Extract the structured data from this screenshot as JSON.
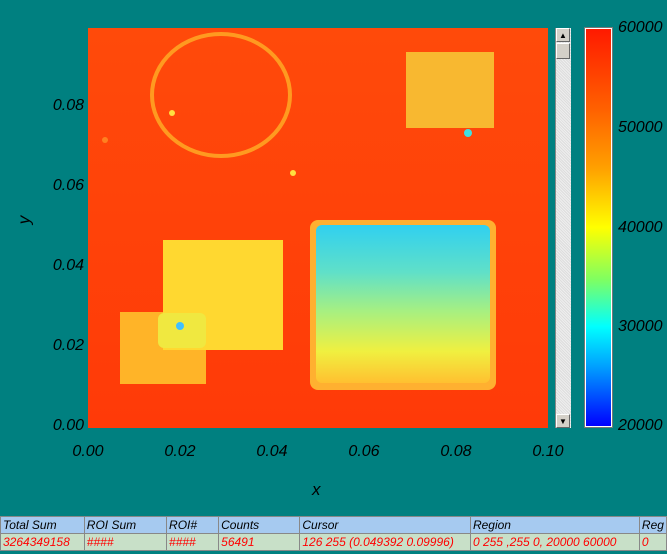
{
  "chart_data": {
    "type": "heatmap",
    "xlabel": "x",
    "ylabel": "y",
    "xlim": [
      0,
      0.1
    ],
    "ylim": [
      0,
      0.1
    ],
    "xticks": [
      "0.00",
      "0.02",
      "0.04",
      "0.06",
      "0.08",
      "0.10"
    ],
    "yticks": [
      "0.00",
      "0.02",
      "0.04",
      "0.06",
      "0.08"
    ],
    "colorbar": {
      "range": [
        20000,
        60000
      ],
      "ticks": [
        "60000",
        "50000",
        "40000",
        "30000",
        "20000"
      ],
      "colormap": "jet"
    }
  },
  "table": {
    "headers": [
      "Total Sum",
      "ROI Sum",
      "ROI#",
      "Counts",
      "Cursor",
      "Region",
      "Reg"
    ],
    "values": [
      "3264349158",
      "####",
      "####",
      "56491",
      "126 255 (0.049392 0.09996)",
      "0 255 ,255 0, 20000 60000",
      "0"
    ]
  },
  "scrollbar": {
    "up": "▲",
    "down": "▼"
  }
}
